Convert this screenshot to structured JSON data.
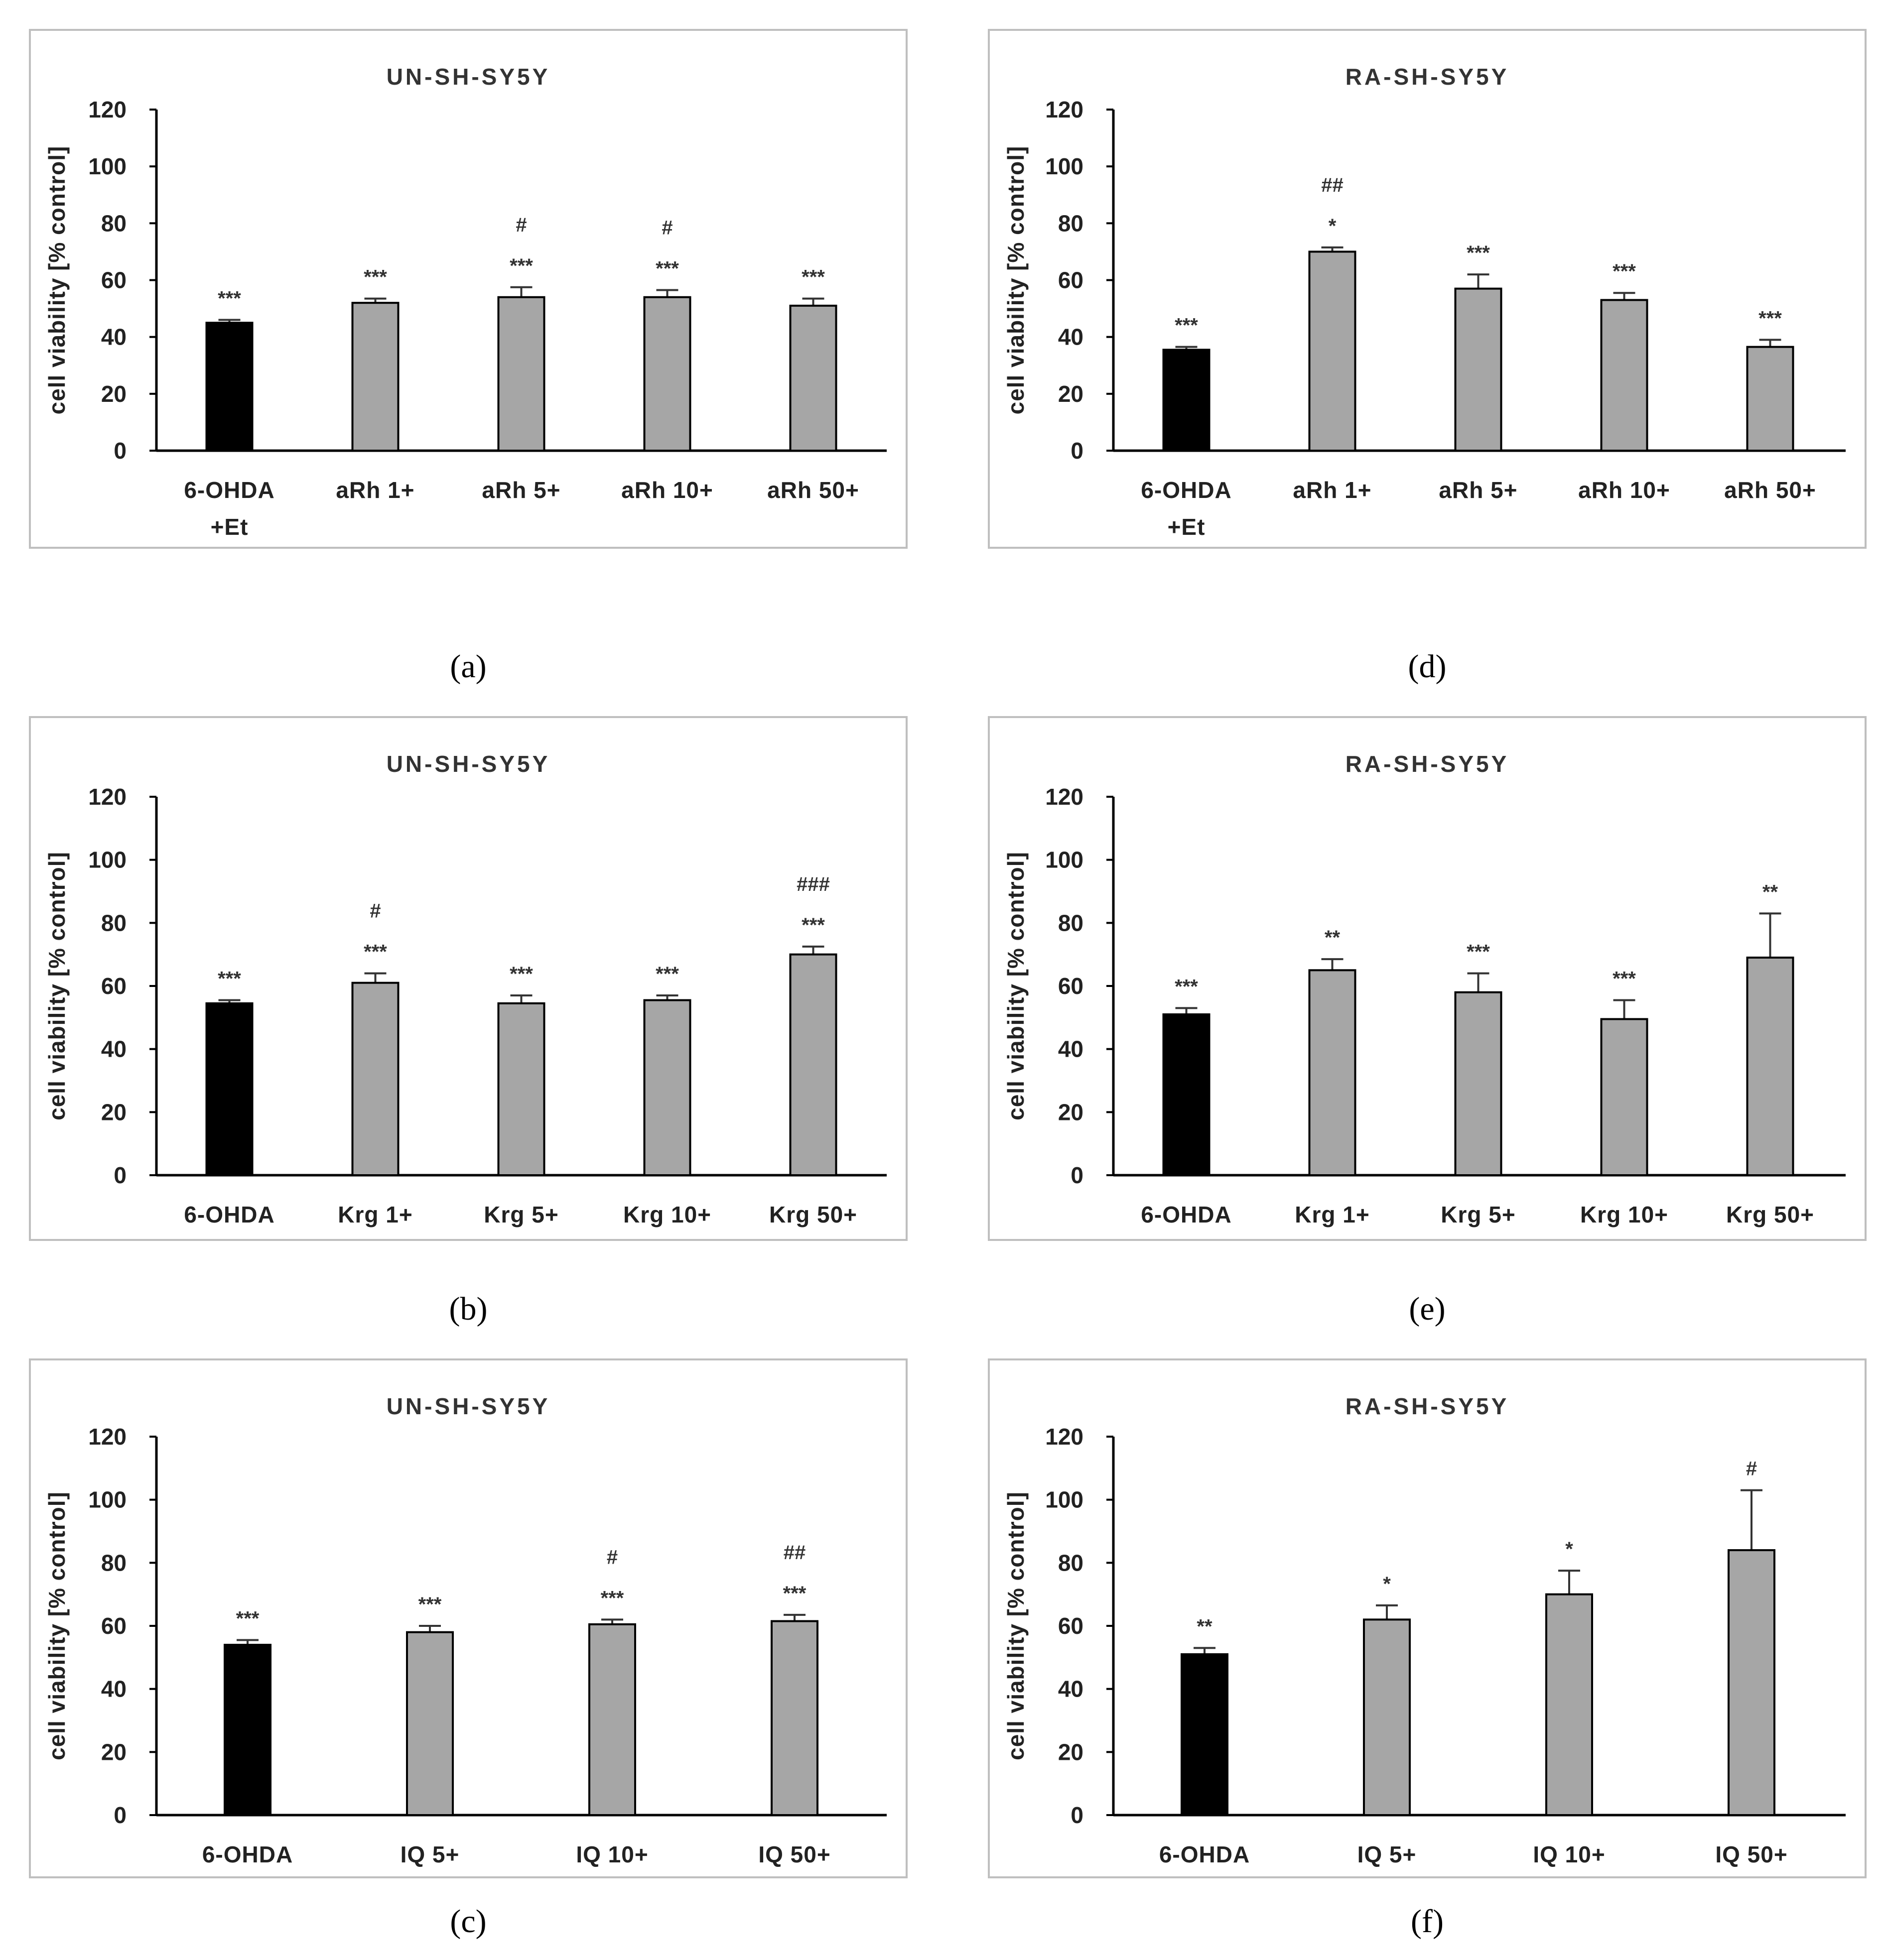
{
  "figure": {
    "colors": {
      "first_bar": "#000000",
      "other_bars": "#a6a6a6",
      "frame": "#bfbfbf",
      "axis": "#000000"
    },
    "panel_labels": [
      "(a)",
      "(b)",
      "(c)",
      "(d)",
      "(e)",
      "(f)"
    ]
  },
  "chart_data": [
    {
      "panel": "a",
      "type": "bar",
      "title": "UN-SH-SY5Y",
      "ylabel": "cell viability [% control]",
      "ylim": [
        0,
        120
      ],
      "yticks": [
        0,
        20,
        40,
        60,
        80,
        100,
        120
      ],
      "categories": [
        [
          "6-OHDA",
          "+Et"
        ],
        [
          "aRh 1+"
        ],
        [
          "aRh 5+"
        ],
        [
          "aRh 10+"
        ],
        [
          "aRh 50+"
        ]
      ],
      "values": [
        45,
        52,
        54,
        54,
        51
      ],
      "errors": [
        1,
        1.5,
        3.5,
        2.5,
        2.5
      ],
      "annotations": [
        [
          "***"
        ],
        [
          "***"
        ],
        [
          "***",
          "#"
        ],
        [
          "***",
          "#"
        ],
        [
          "***"
        ]
      ]
    },
    {
      "panel": "b",
      "type": "bar",
      "title": "UN-SH-SY5Y",
      "ylabel": "cell viability [% control]",
      "ylim": [
        0,
        120
      ],
      "yticks": [
        0,
        20,
        40,
        60,
        80,
        100,
        120
      ],
      "categories": [
        [
          "6-OHDA"
        ],
        [
          "Krg 1+"
        ],
        [
          "Krg 5+"
        ],
        [
          "Krg 10+"
        ],
        [
          "Krg 50+"
        ]
      ],
      "values": [
        54.5,
        61,
        54.5,
        55.5,
        70
      ],
      "errors": [
        1,
        3,
        2.5,
        1.5,
        2.5
      ],
      "annotations": [
        [
          "***"
        ],
        [
          "***",
          "#"
        ],
        [
          "***"
        ],
        [
          "***"
        ],
        [
          "***",
          "###"
        ]
      ]
    },
    {
      "panel": "c",
      "type": "bar",
      "title": "UN-SH-SY5Y",
      "ylabel": "cell viability [% control]",
      "ylim": [
        0,
        120
      ],
      "yticks": [
        0,
        20,
        40,
        60,
        80,
        100,
        120
      ],
      "categories": [
        [
          "6-OHDA"
        ],
        [
          "IQ 5+"
        ],
        [
          "IQ 10+"
        ],
        [
          "IQ 50+"
        ]
      ],
      "values": [
        54,
        58,
        60.5,
        61.5
      ],
      "errors": [
        1.5,
        2,
        1.5,
        2
      ],
      "annotations": [
        [
          "***"
        ],
        [
          "***"
        ],
        [
          "***",
          "#"
        ],
        [
          "***",
          "##"
        ]
      ]
    },
    {
      "panel": "d",
      "type": "bar",
      "title": "RA-SH-SY5Y",
      "ylabel": "cell viability [% control]",
      "ylim": [
        0,
        120
      ],
      "yticks": [
        0,
        20,
        40,
        60,
        80,
        100,
        120
      ],
      "categories": [
        [
          "6-OHDA",
          "+Et"
        ],
        [
          "aRh 1+"
        ],
        [
          "aRh 5+"
        ],
        [
          "aRh 10+"
        ],
        [
          "aRh 50+"
        ]
      ],
      "values": [
        35.5,
        70,
        57,
        53,
        36.5
      ],
      "errors": [
        1,
        1.5,
        5,
        2.5,
        2.5
      ],
      "annotations": [
        [
          "***"
        ],
        [
          "*",
          "##"
        ],
        [
          "***"
        ],
        [
          "***"
        ],
        [
          "***"
        ]
      ]
    },
    {
      "panel": "e",
      "type": "bar",
      "title": "RA-SH-SY5Y",
      "ylabel": "cell viability [% control]",
      "ylim": [
        0,
        120
      ],
      "yticks": [
        0,
        20,
        40,
        60,
        80,
        100,
        120
      ],
      "categories": [
        [
          "6-OHDA"
        ],
        [
          "Krg 1+"
        ],
        [
          "Krg 5+"
        ],
        [
          "Krg 10+"
        ],
        [
          "Krg 50+"
        ]
      ],
      "values": [
        51,
        65,
        58,
        49.5,
        69
      ],
      "errors": [
        2,
        3.5,
        6,
        6,
        14
      ],
      "annotations": [
        [
          "***"
        ],
        [
          "**"
        ],
        [
          "***"
        ],
        [
          "***"
        ],
        [
          "**"
        ]
      ]
    },
    {
      "panel": "f",
      "type": "bar",
      "title": "RA-SH-SY5Y",
      "ylabel": "cell viability [% control]",
      "ylim": [
        0,
        120
      ],
      "yticks": [
        0,
        20,
        40,
        60,
        80,
        100,
        120
      ],
      "categories": [
        [
          "6-OHDA"
        ],
        [
          "IQ 5+"
        ],
        [
          "IQ 10+"
        ],
        [
          "IQ 50+"
        ]
      ],
      "values": [
        51,
        62,
        70,
        84
      ],
      "errors": [
        2,
        4.5,
        7.5,
        19
      ],
      "annotations": [
        [
          "**"
        ],
        [
          "*"
        ],
        [
          "*"
        ],
        [
          "#"
        ]
      ]
    }
  ]
}
